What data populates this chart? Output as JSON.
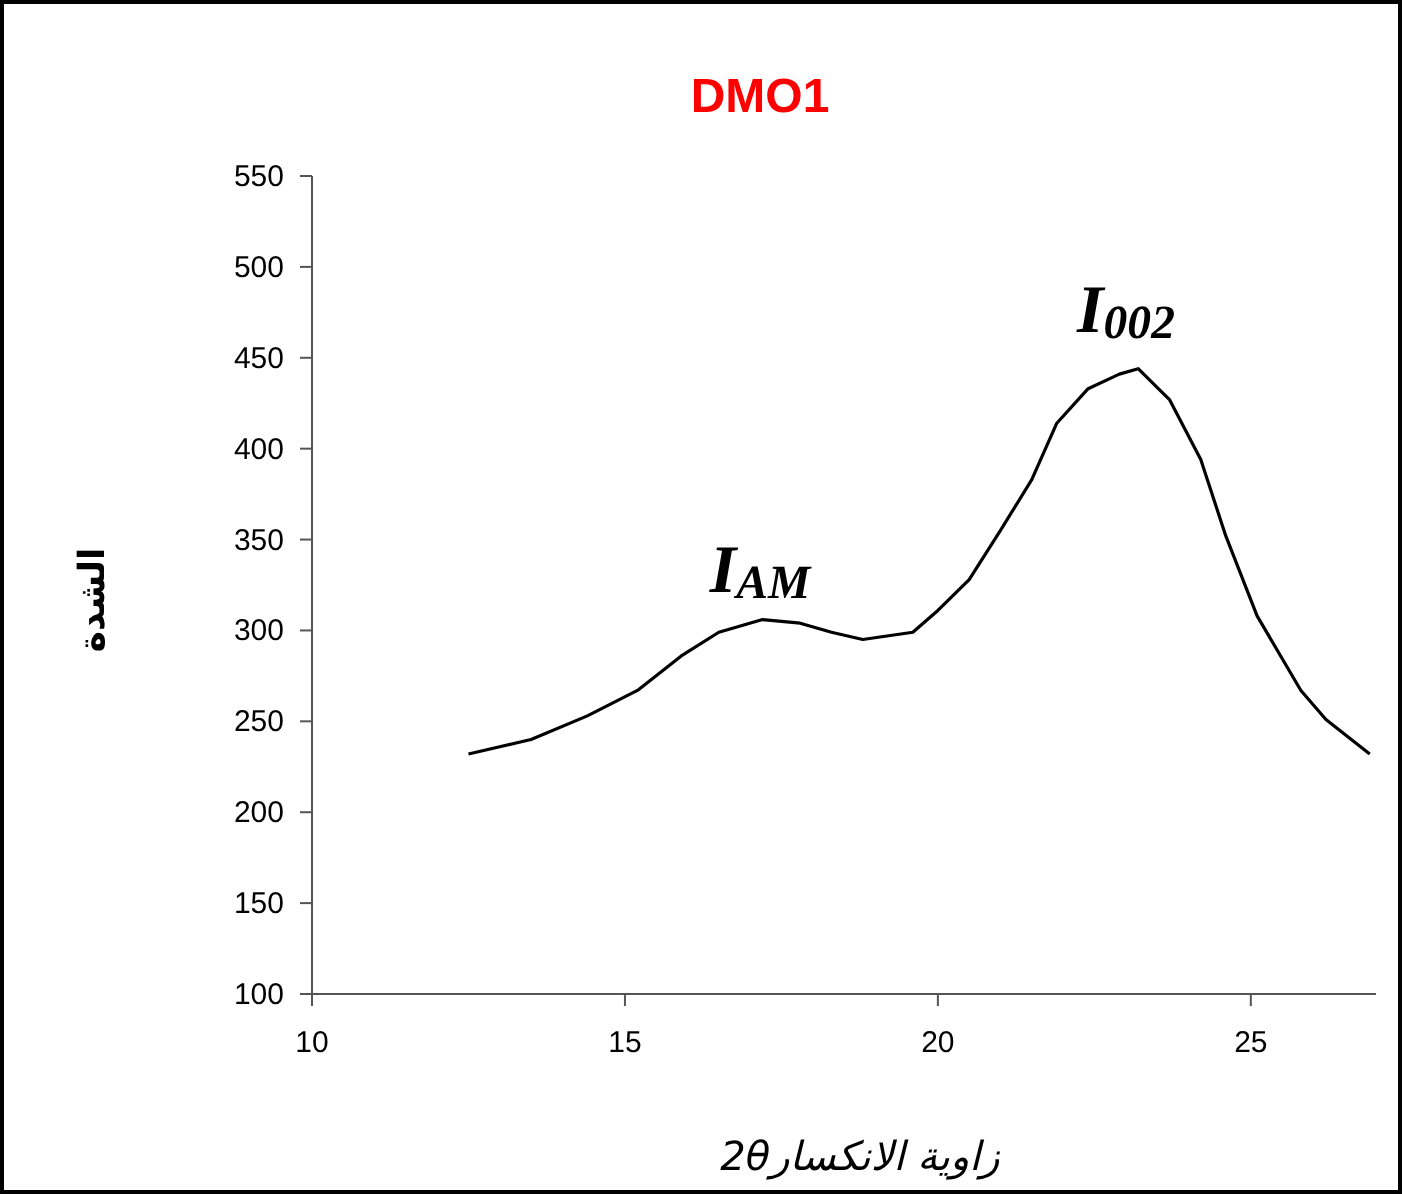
{
  "chart_data": {
    "type": "line",
    "title": "DMO1",
    "xlabel": "زاوية الانكسار2θ",
    "ylabel": "الشدة",
    "x": [
      12.5,
      13.5,
      14.4,
      15.2,
      15.9,
      16.5,
      17.2,
      17.8,
      18.3,
      18.8,
      19.6,
      20.0,
      20.5,
      21.0,
      21.5,
      21.9,
      22.4,
      22.9,
      23.2,
      23.7,
      24.2,
      24.6,
      25.1,
      25.8,
      26.2,
      26.9
    ],
    "values": [
      232,
      240,
      253,
      267,
      286,
      299,
      306,
      304,
      299,
      295,
      299,
      311,
      328,
      355,
      383,
      414,
      433,
      441,
      444,
      427,
      394,
      352,
      308,
      267,
      251,
      232
    ],
    "color": "#000000",
    "xlim": [
      10,
      27
    ],
    "ylim": [
      100,
      550
    ],
    "xticks": [
      10,
      15,
      20,
      25
    ],
    "yticks": [
      100,
      150,
      200,
      250,
      300,
      350,
      400,
      450,
      500,
      550
    ],
    "grid": false,
    "marker": "none",
    "line_style": "solid",
    "annotations": [
      "I$_{AM}$",
      "I$_{002}$"
    ]
  }
}
